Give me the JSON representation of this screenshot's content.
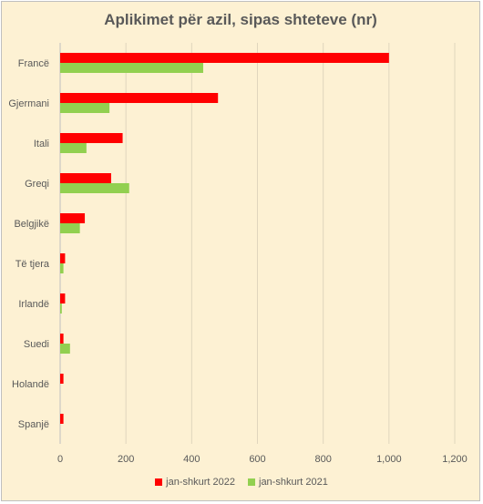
{
  "chart_data": {
    "type": "bar",
    "orientation": "horizontal",
    "title": "Aplikimet për azil, sipas shteteve (nr)",
    "categories": [
      "Francë",
      "Gjermani",
      "Itali",
      "Greqi",
      "Belgjikë",
      "Të tjera",
      "Irlandë",
      "Suedi",
      "Holandë",
      "Spanjë"
    ],
    "series": [
      {
        "name": "jan-shkurt 2022",
        "color": "#ff0000",
        "values": [
          1000,
          480,
          190,
          155,
          75,
          15,
          15,
          10,
          10,
          10
        ]
      },
      {
        "name": "jan-shkurt 2021",
        "color": "#92d050",
        "values": [
          435,
          150,
          80,
          210,
          60,
          10,
          5,
          30,
          0,
          0
        ]
      }
    ],
    "xlim": [
      0,
      1200
    ],
    "x_ticks": [
      0,
      200,
      400,
      600,
      800,
      1000,
      1200
    ],
    "x_tick_labels": [
      "0",
      "200",
      "400",
      "600",
      "800",
      "1,000",
      "1,200"
    ],
    "grid": true,
    "legend_position": "bottom"
  }
}
